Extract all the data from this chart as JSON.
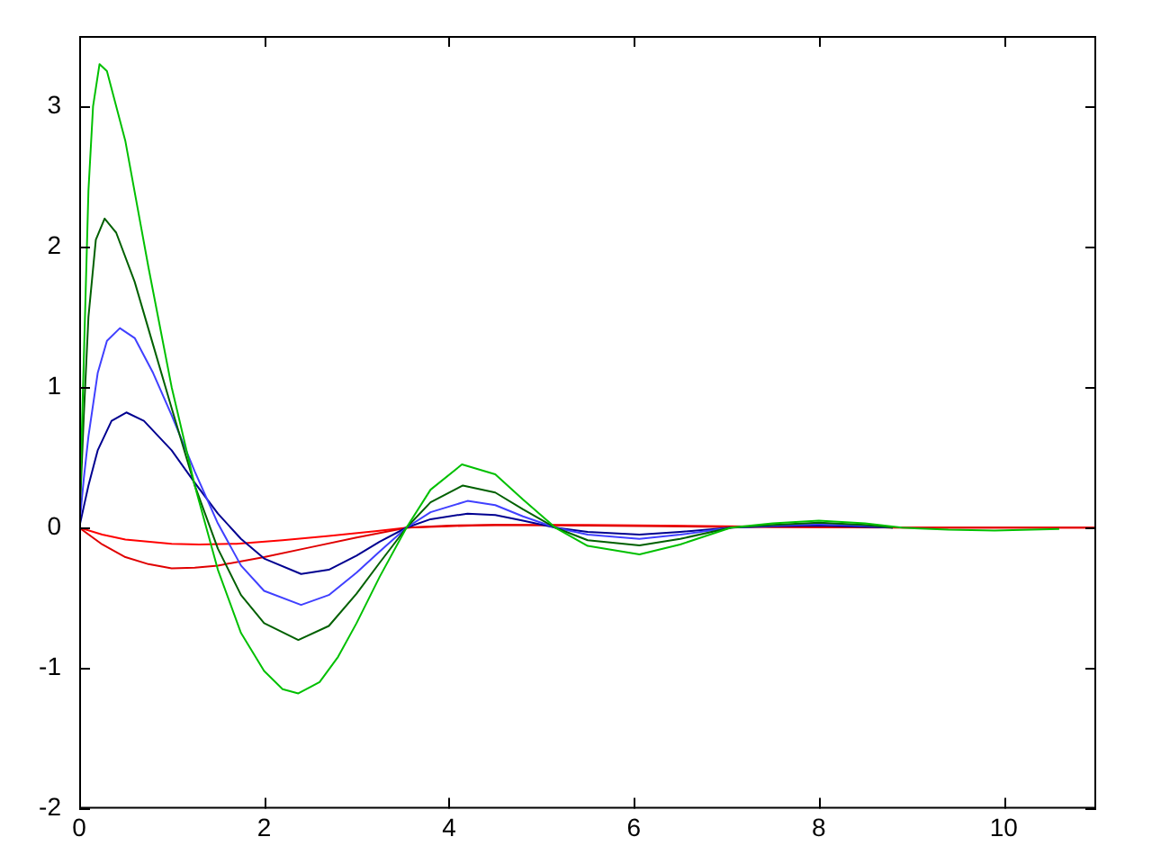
{
  "chart_data": {
    "type": "line",
    "xlim": [
      0,
      11
    ],
    "xticks": [
      0,
      2,
      4,
      6,
      8,
      10
    ],
    "ylim": [
      -2,
      3.5
    ],
    "yticks": [
      -2,
      -1,
      0,
      1,
      2,
      3
    ],
    "grid": false,
    "legend": false,
    "marker": "none",
    "line_style": "solid",
    "series": [
      {
        "color": "#00c000",
        "x": [
          0,
          0.05,
          0.1,
          0.15,
          0.22,
          0.3,
          0.5,
          0.75,
          1.0,
          1.25,
          1.5,
          1.75,
          2.0,
          2.2,
          2.37,
          2.6,
          2.8,
          3.0,
          3.25,
          3.54,
          3.8,
          4.14,
          4.5,
          4.8,
          5.15,
          5.5,
          6.06,
          6.5,
          7.05,
          7.5,
          8.0,
          8.5,
          8.9,
          9.4,
          9.9,
          10.3,
          10.6
        ],
        "values": [
          0,
          1.2,
          2.4,
          3.0,
          3.3,
          3.25,
          2.75,
          1.85,
          1.0,
          0.3,
          -0.3,
          -0.75,
          -1.02,
          -1.15,
          -1.18,
          -1.1,
          -0.92,
          -0.68,
          -0.35,
          0,
          0.27,
          0.45,
          0.38,
          0.2,
          0,
          -0.13,
          -0.19,
          -0.12,
          0,
          0.03,
          0.05,
          0.03,
          0,
          -0.015,
          -0.02,
          -0.015,
          -0.01
        ]
      },
      {
        "color": "#006000",
        "x": [
          0,
          0.05,
          0.1,
          0.18,
          0.275,
          0.4,
          0.6,
          0.8,
          1.0,
          1.25,
          1.5,
          1.75,
          2.0,
          2.37,
          2.7,
          3.0,
          3.25,
          3.54,
          3.8,
          4.15,
          4.5,
          4.8,
          5.15,
          5.5,
          6.06,
          6.5,
          7.05,
          7.5,
          8.0,
          8.5,
          8.8
        ],
        "values": [
          0,
          0.8,
          1.5,
          2.05,
          2.2,
          2.1,
          1.75,
          1.3,
          0.85,
          0.3,
          -0.15,
          -0.48,
          -0.68,
          -0.8,
          -0.7,
          -0.47,
          -0.25,
          0,
          0.18,
          0.3,
          0.25,
          0.13,
          0,
          -0.09,
          -0.127,
          -0.08,
          0,
          0.02,
          0.035,
          0.02,
          0
        ]
      },
      {
        "color": "#4040ff",
        "x": [
          0,
          0.05,
          0.1,
          0.2,
          0.3,
          0.44,
          0.6,
          0.8,
          1.0,
          1.25,
          1.5,
          1.75,
          2.0,
          2.4,
          2.7,
          3.0,
          3.25,
          3.54,
          3.8,
          4.2,
          4.5,
          4.8,
          5.15,
          5.5,
          6.06,
          6.5,
          7.05,
          7.5,
          8.0,
          8.5,
          8.8
        ],
        "values": [
          0,
          0.35,
          0.65,
          1.1,
          1.33,
          1.42,
          1.35,
          1.1,
          0.8,
          0.4,
          0.03,
          -0.27,
          -0.45,
          -0.55,
          -0.48,
          -0.32,
          -0.17,
          0,
          0.11,
          0.19,
          0.16,
          0.08,
          0,
          -0.05,
          -0.08,
          -0.05,
          0,
          0.015,
          0.025,
          0.015,
          0
        ]
      },
      {
        "color": "#000090",
        "x": [
          0,
          0.05,
          0.1,
          0.2,
          0.35,
          0.51,
          0.7,
          1.0,
          1.25,
          1.5,
          1.75,
          2.0,
          2.4,
          2.7,
          3.0,
          3.25,
          3.54,
          3.8,
          4.2,
          4.5,
          4.8,
          5.15,
          5.5,
          6.06,
          6.5,
          7.05,
          7.5,
          8.0,
          8.8
        ],
        "values": [
          0,
          0.15,
          0.3,
          0.55,
          0.76,
          0.82,
          0.76,
          0.55,
          0.32,
          0.1,
          -0.08,
          -0.22,
          -0.33,
          -0.3,
          -0.2,
          -0.1,
          0,
          0.06,
          0.1,
          0.09,
          0.05,
          0,
          -0.03,
          -0.05,
          -0.03,
          0,
          0.01,
          0.015,
          0
        ]
      },
      {
        "color": "#e00000",
        "x": [
          0,
          0.25,
          0.5,
          0.75,
          1.0,
          1.25,
          1.5,
          2.0,
          2.5,
          3.0,
          3.55,
          4.0,
          4.5,
          5.5,
          7,
          9,
          11
        ],
        "values": [
          0,
          -0.12,
          -0.21,
          -0.26,
          -0.29,
          -0.285,
          -0.27,
          -0.21,
          -0.14,
          -0.07,
          0,
          0.015,
          0.02,
          0.015,
          0.005,
          0,
          0
        ]
      },
      {
        "color": "#ff0000",
        "x": [
          0,
          0.25,
          0.5,
          1.0,
          1.3,
          1.7,
          2.2,
          2.7,
          3.2,
          3.55,
          4.0,
          4.5,
          5.5,
          7,
          9,
          11
        ],
        "values": [
          0,
          -0.05,
          -0.085,
          -0.115,
          -0.12,
          -0.115,
          -0.09,
          -0.06,
          -0.025,
          0,
          0.01,
          0.02,
          0.02,
          0.01,
          0,
          0
        ]
      }
    ]
  }
}
